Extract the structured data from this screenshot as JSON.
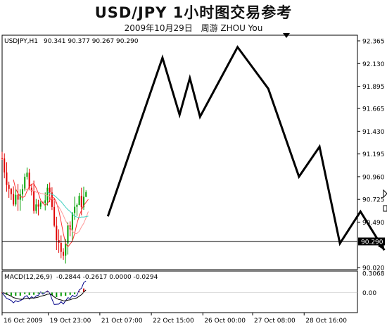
{
  "header": {
    "title": "USD/JPY 1小时图交易参考",
    "date": "2009年10月29日",
    "author": "周游 ZHOU You"
  },
  "chart_data": [
    {
      "type": "candlestick",
      "symbol_label": "USDJPY,H1",
      "ohlc_label": "90.341 90.377 90.267 90.290",
      "current_price_label": "90.290",
      "y_ticks": [
        "92.365",
        "92.130",
        "91.895",
        "91.665",
        "91.430",
        "91.195",
        "90.960",
        "90.725",
        "90.490",
        "90.255",
        "90.020"
      ],
      "x_ticks": [
        "16 Oct 2009",
        "19 Oct 23:00",
        "21 Oct 07:00",
        "22 Oct 15:00",
        "26 Oct 00:00",
        "27 Oct 08:00",
        "28 Oct 16:00"
      ],
      "ylim": [
        90.02,
        92.365
      ],
      "up_color": "#00a000",
      "down_color": "#e00000",
      "moving_average_colors": [
        "#ff3333",
        "#ff9999",
        "#40d0c0",
        "#9933cc"
      ],
      "zigzag_overlay": [
        {
          "t": 0.31,
          "price": 90.55
        },
        {
          "t": 0.47,
          "price": 92.19
        },
        {
          "t": 0.52,
          "price": 91.6
        },
        {
          "t": 0.55,
          "price": 91.98
        },
        {
          "t": 0.58,
          "price": 91.58
        },
        {
          "t": 0.69,
          "price": 92.3
        },
        {
          "t": 0.78,
          "price": 91.87
        },
        {
          "t": 0.87,
          "price": 90.96
        },
        {
          "t": 0.93,
          "price": 91.27
        },
        {
          "t": 0.99,
          "price": 90.27
        },
        {
          "t": 1.05,
          "price": 90.6
        },
        {
          "t": 1.12,
          "price": 90.2
        }
      ]
    },
    {
      "type": "bar",
      "indicator_label": "MACD(12,26,9)",
      "values_label": "-0.2844 -0.2617 0.0000 -0.0294",
      "y_ticks": [
        "0.3068",
        "0.00"
      ],
      "ylim": [
        -0.3,
        0.3068
      ],
      "histogram_color": "#cc0000",
      "macd_line_color": "#000088",
      "signal_line_color": "#000000"
    }
  ]
}
